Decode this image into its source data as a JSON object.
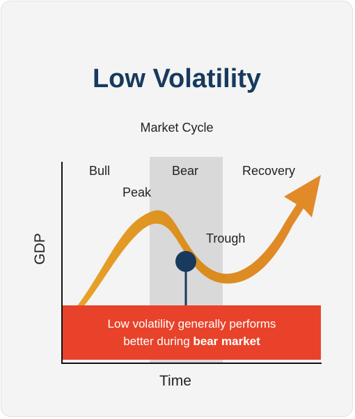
{
  "title": "Low Volatility",
  "subtitle": "Market Cycle",
  "phases": {
    "bull": "Bull",
    "bear": "Bear",
    "recovery": "Recovery"
  },
  "points": {
    "peak": "Peak",
    "trough": "Trough"
  },
  "axes": {
    "x_label": "Time",
    "y_label": "GDP"
  },
  "callout": {
    "line1": "Low volatility generally performs",
    "line2_prefix": "better during ",
    "line2_emphasis": "bear market"
  },
  "colors": {
    "title": "#173a5e",
    "curve": "#e0911f",
    "bear_band": "#d9d9d9",
    "callout_bg": "#e8432a",
    "marker": "#173a5e"
  }
}
